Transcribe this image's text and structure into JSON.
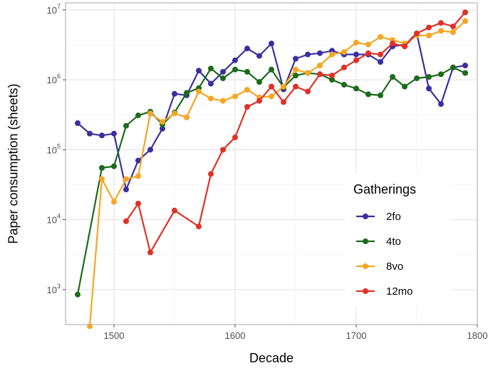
{
  "chart_data": {
    "type": "line",
    "title": "",
    "xlabel": "Decade",
    "ylabel": "Paper consumption (sheets)",
    "y_scale": "log10",
    "xlim": [
      1460,
      1800
    ],
    "ylim_log10": [
      2.5,
      7.1
    ],
    "x_ticks": [
      1500,
      1600,
      1700,
      1800
    ],
    "x_tick_labels": [
      "1500",
      "1600",
      "1700",
      "1800"
    ],
    "y_ticks_exp": [
      3,
      4,
      5,
      6,
      7
    ],
    "y_tick_base": "10",
    "y_tick_exponents": [
      "3",
      "4",
      "5",
      "6",
      "7"
    ],
    "legend": {
      "title": "Gatherings",
      "position": "bottom-right"
    },
    "grid": true,
    "series": [
      {
        "name": "2fo",
        "color": "#3b2fa0",
        "x": [
          1470,
          1480,
          1490,
          1500,
          1510,
          1520,
          1530,
          1540,
          1550,
          1560,
          1570,
          1580,
          1590,
          1600,
          1610,
          1620,
          1630,
          1640,
          1650,
          1660,
          1670,
          1680,
          1690,
          1700,
          1710,
          1720,
          1730,
          1740,
          1750,
          1760,
          1770,
          1780,
          1790
        ],
        "y": [
          240000,
          170000,
          160000,
          170000,
          27000,
          70000,
          100000,
          200000,
          630000,
          600000,
          1350000,
          880000,
          1300000,
          1900000,
          2800000,
          2200000,
          3300000,
          730000,
          2000000,
          2300000,
          2400000,
          2600000,
          2300000,
          2300000,
          2300000,
          1800000,
          3000000,
          3200000,
          4600000,
          750000,
          450000,
          1500000,
          1600000
        ]
      },
      {
        "name": "4to",
        "color": "#1b6b1b",
        "x": [
          1470,
          1490,
          1500,
          1510,
          1520,
          1530,
          1540,
          1550,
          1560,
          1570,
          1580,
          1590,
          1600,
          1610,
          1620,
          1630,
          1640,
          1650,
          1660,
          1670,
          1680,
          1690,
          1700,
          1710,
          1720,
          1730,
          1740,
          1750,
          1760,
          1770,
          1780,
          1790
        ],
        "y": [
          850,
          55000,
          58000,
          220000,
          310000,
          350000,
          230000,
          340000,
          650000,
          760000,
          1450000,
          1050000,
          1400000,
          1300000,
          930000,
          1400000,
          780000,
          1150000,
          1250000,
          1200000,
          1000000,
          850000,
          750000,
          620000,
          600000,
          1100000,
          800000,
          1050000,
          1100000,
          1200000,
          1500000,
          1250000
        ]
      },
      {
        "name": "8vo",
        "color": "#f5a623",
        "x": [
          1480,
          1490,
          1500,
          1510,
          1520,
          1530,
          1540,
          1550,
          1560,
          1570,
          1580,
          1590,
          1600,
          1610,
          1620,
          1630,
          1640,
          1650,
          1660,
          1670,
          1680,
          1690,
          1700,
          1710,
          1720,
          1730,
          1740,
          1750,
          1760,
          1770,
          1780,
          1790
        ],
        "y": [
          300,
          38000,
          18000,
          38000,
          42000,
          330000,
          250000,
          330000,
          290000,
          680000,
          540000,
          500000,
          580000,
          720000,
          560000,
          580000,
          800000,
          1400000,
          1250000,
          1600000,
          2300000,
          2500000,
          3400000,
          3200000,
          4100000,
          3700000,
          3300000,
          4300000,
          4300000,
          5000000,
          4800000,
          6900000
        ]
      },
      {
        "name": "12mo",
        "color": "#e03127",
        "x": [
          1510,
          1520,
          1530,
          1550,
          1570,
          1580,
          1590,
          1600,
          1610,
          1620,
          1630,
          1640,
          1650,
          1660,
          1670,
          1680,
          1690,
          1700,
          1710,
          1720,
          1730,
          1740,
          1750,
          1760,
          1770,
          1780,
          1790
        ],
        "y": [
          9500,
          17000,
          3400,
          13500,
          8000,
          45000,
          100000,
          150000,
          410000,
          500000,
          800000,
          480000,
          800000,
          680000,
          1200000,
          1150000,
          1500000,
          1900000,
          2400000,
          2300000,
          3300000,
          3000000,
          4600000,
          5600000,
          6500000,
          5800000,
          9200000
        ]
      }
    ]
  }
}
